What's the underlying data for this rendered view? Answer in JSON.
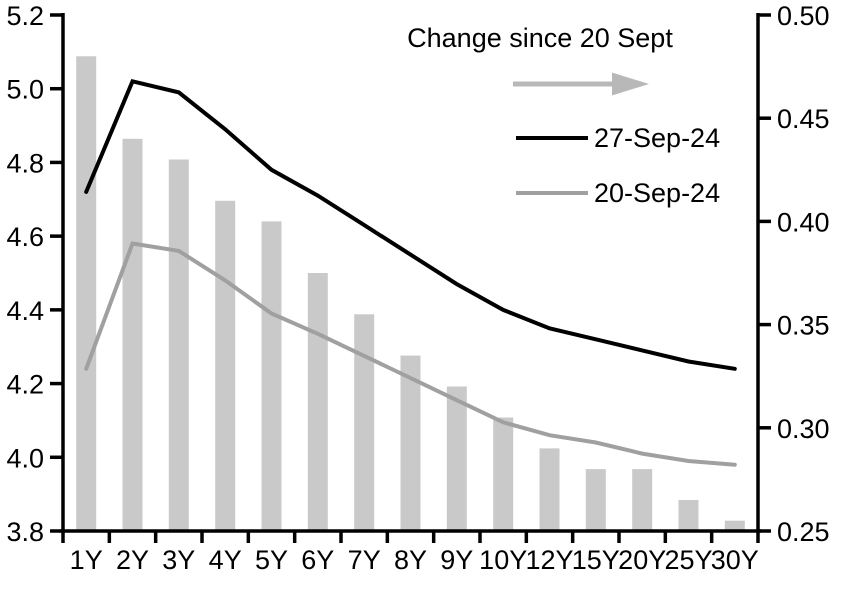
{
  "chart_data": {
    "type": "bar+line",
    "categories": [
      "1Y",
      "2Y",
      "3Y",
      "4Y",
      "5Y",
      "6Y",
      "7Y",
      "8Y",
      "9Y",
      "10Y",
      "12Y",
      "15Y",
      "20Y",
      "25Y",
      "30Y"
    ],
    "left_axis": {
      "min": 3.8,
      "max": 5.2,
      "tick_labels": [
        "5.2",
        "5.0",
        "4.8",
        "4.6",
        "4.4",
        "4.2",
        "4.0",
        "3.8"
      ]
    },
    "right_axis": {
      "min": 0.25,
      "max": 0.5,
      "tick_labels": [
        "0.50",
        "0.45",
        "0.40",
        "0.35",
        "0.30",
        "0.25"
      ]
    },
    "bar_series": {
      "name": "Change since 20 Sept",
      "axis": "right",
      "color": "#c9c9c9",
      "values": [
        0.48,
        0.44,
        0.43,
        0.41,
        0.4,
        0.375,
        0.355,
        0.335,
        0.32,
        0.305,
        0.29,
        0.28,
        0.28,
        0.265,
        0.255
      ]
    },
    "line_series": [
      {
        "name": "27-Sep-24",
        "axis": "left",
        "color": "#000000",
        "values": [
          4.72,
          5.02,
          4.99,
          4.89,
          4.78,
          4.71,
          4.63,
          4.55,
          4.47,
          4.4,
          4.35,
          4.32,
          4.29,
          4.26,
          4.24
        ]
      },
      {
        "name": "20-Sep-24",
        "axis": "left",
        "color": "#a0a0a0",
        "values": [
          4.24,
          4.58,
          4.56,
          4.48,
          4.39,
          4.335,
          4.275,
          4.215,
          4.155,
          4.095,
          4.06,
          4.04,
          4.01,
          3.99,
          3.98
        ]
      }
    ],
    "legend": {
      "title": "Change since 20 Sept",
      "arrow_color": "#b8b8b8",
      "entries": [
        "27-Sep-24",
        "20-Sep-24"
      ],
      "position": "top-right-inside"
    },
    "grid": false
  },
  "colors": {
    "background": "#ffffff",
    "axis": "#000000",
    "text": "#000000"
  }
}
